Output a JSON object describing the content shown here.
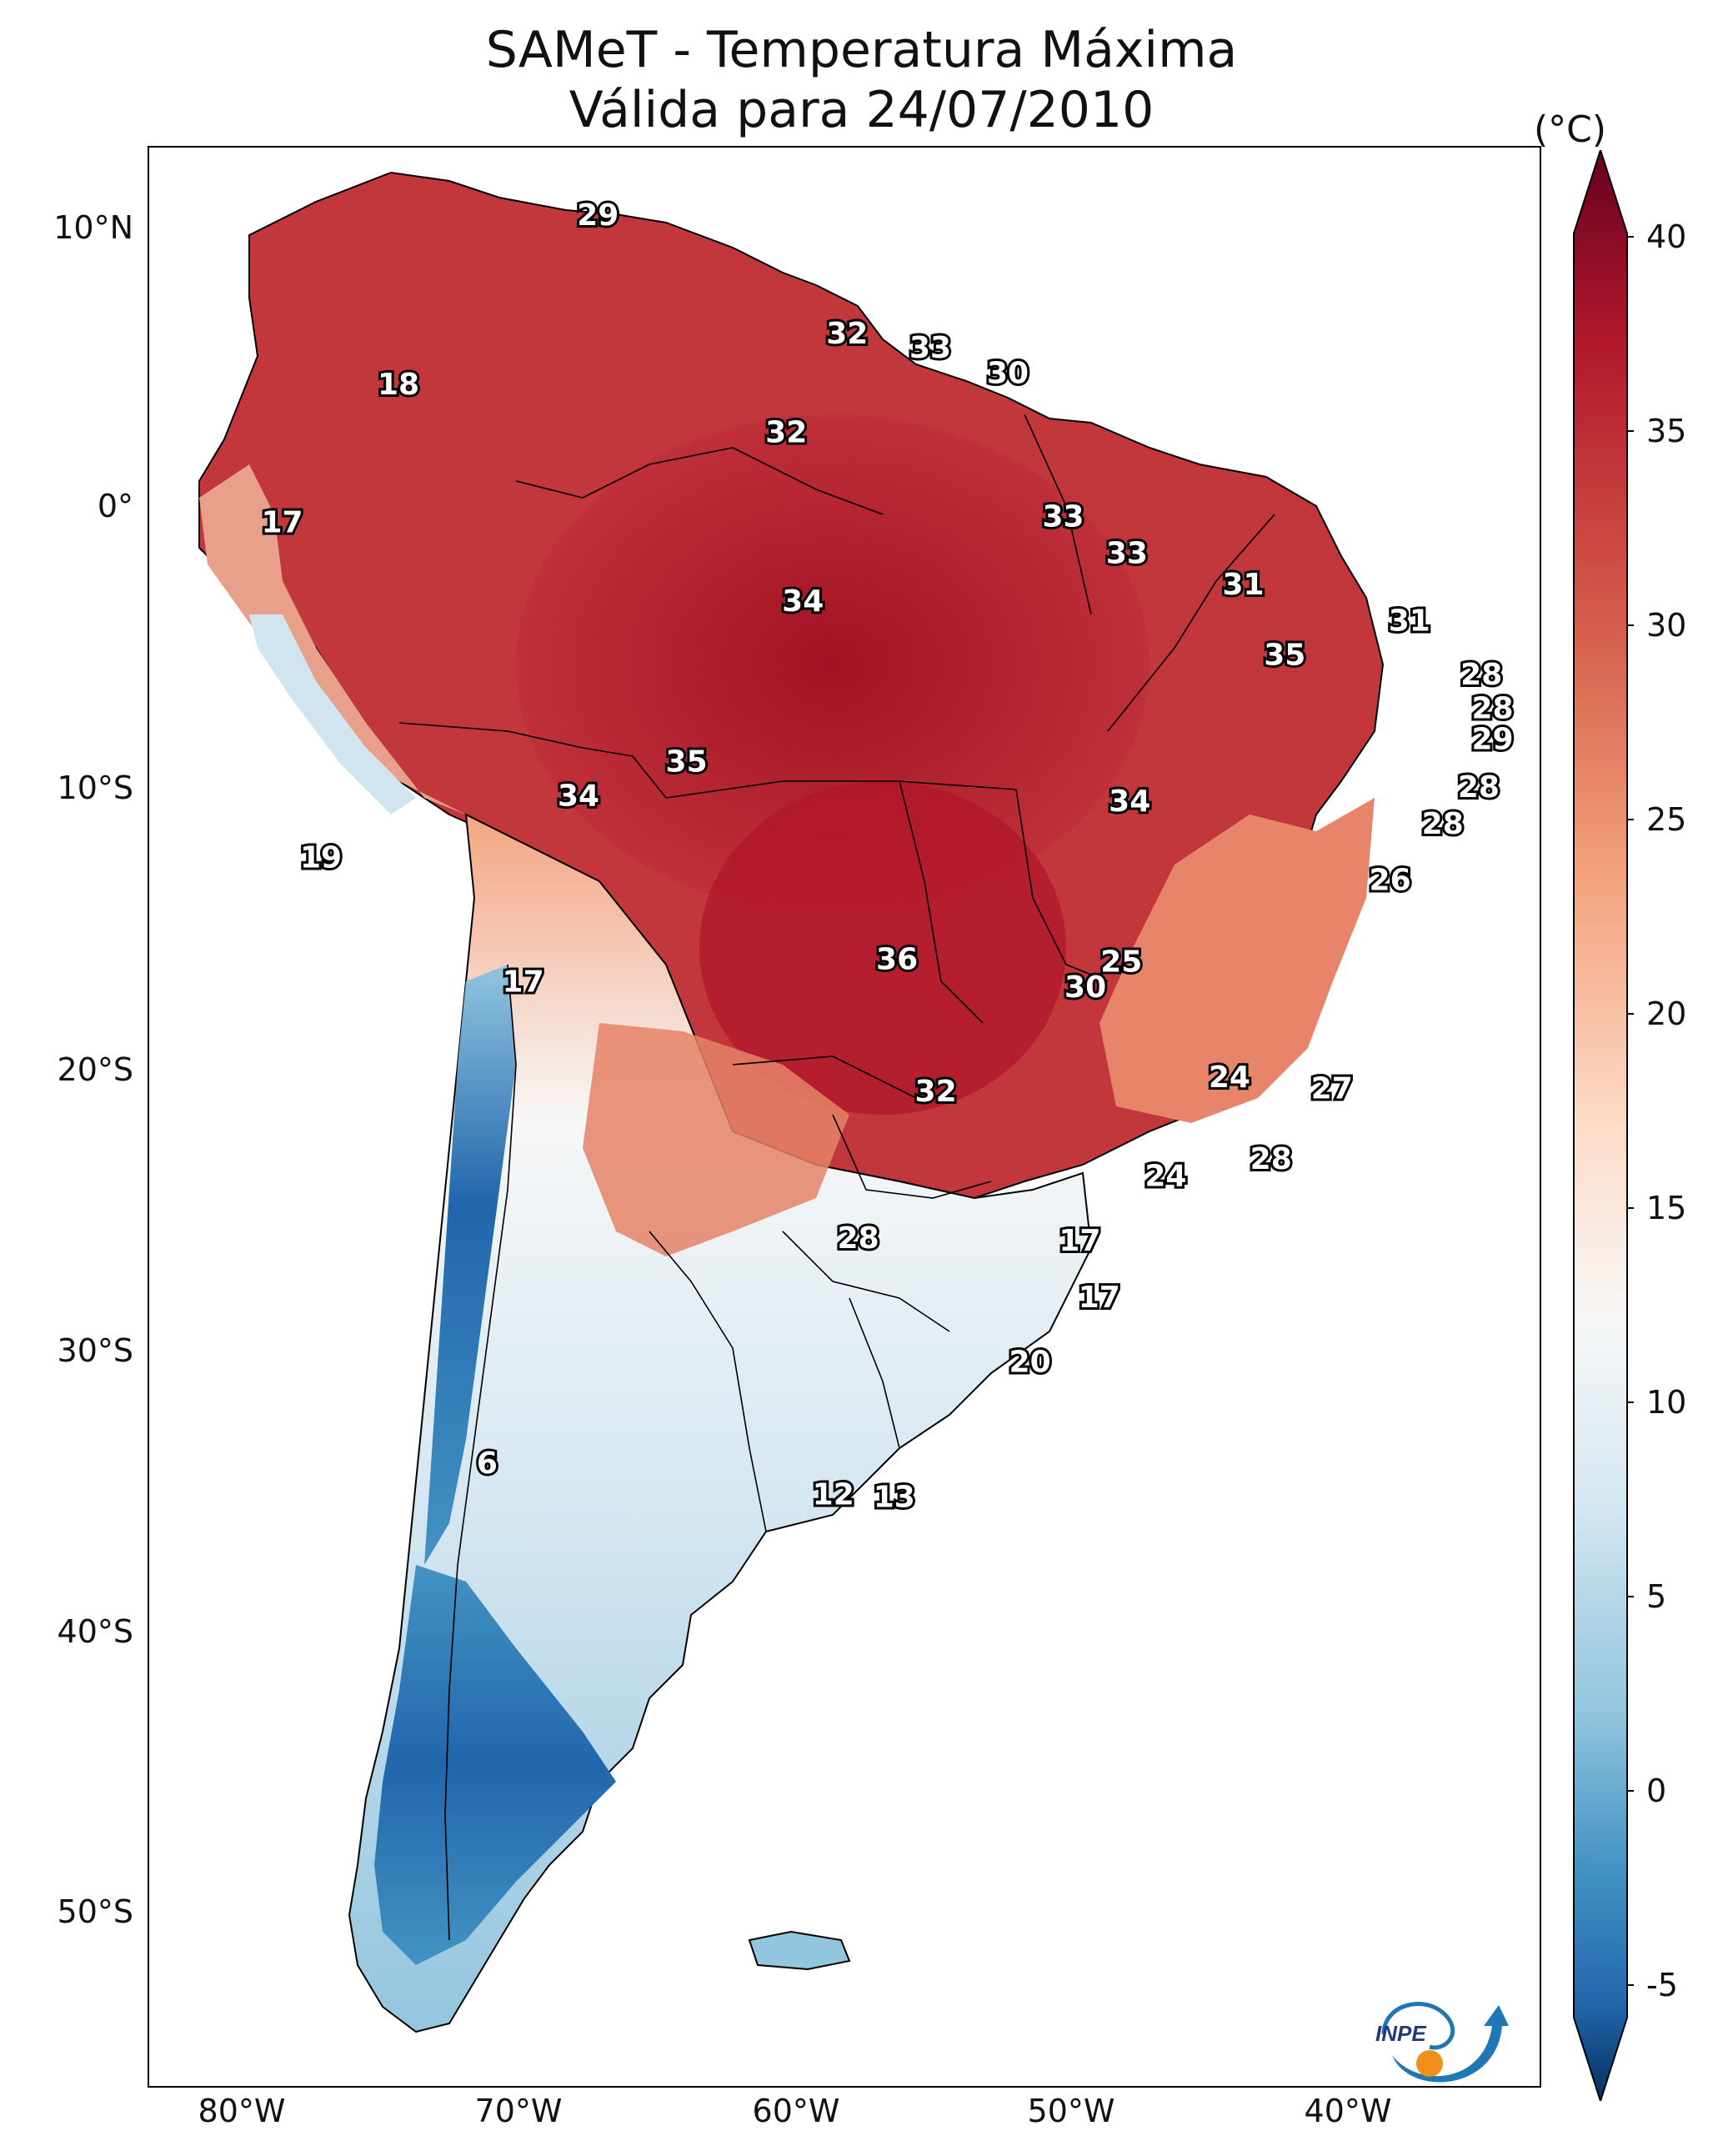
{
  "title": {
    "line1": "SAMeT - Temperatura Máxima",
    "line2": "Válida para 24/07/2010"
  },
  "axes": {
    "lat_labels": [
      "10°N",
      "0°",
      "10°S",
      "20°S",
      "30°S",
      "40°S",
      "50°S"
    ],
    "lon_labels": [
      "80°W",
      "70°W",
      "60°W",
      "50°W",
      "40°W"
    ]
  },
  "colorbar": {
    "unit": "(°C)",
    "range": [
      -5,
      40
    ],
    "ticks": [
      "40",
      "35",
      "30",
      "25",
      "20",
      "15",
      "10",
      "5",
      "0",
      "-5"
    ],
    "colors": [
      "#67001f",
      "#b2182b",
      "#d6604d",
      "#f4a582",
      "#fddbc7",
      "#f7f7f7",
      "#d1e5f0",
      "#92c5de",
      "#4393c3",
      "#2166ac",
      "#053061"
    ]
  },
  "map_labels": [
    {
      "text": "29",
      "lon": -66.8,
      "lat": 10.5
    },
    {
      "text": "32",
      "lon": -57.8,
      "lat": 6.3
    },
    {
      "text": "33",
      "lon": -54.8,
      "lat": 5.8
    },
    {
      "text": "30",
      "lon": -52.0,
      "lat": 4.9
    },
    {
      "text": "18",
      "lon": -74.0,
      "lat": 4.5
    },
    {
      "text": "32",
      "lon": -60.0,
      "lat": 2.8
    },
    {
      "text": "17",
      "lon": -78.2,
      "lat": -0.4
    },
    {
      "text": "33",
      "lon": -50.0,
      "lat": -0.2
    },
    {
      "text": "33",
      "lon": -47.7,
      "lat": -1.5
    },
    {
      "text": "34",
      "lon": -59.4,
      "lat": -3.2
    },
    {
      "text": "31",
      "lon": -43.5,
      "lat": -2.6
    },
    {
      "text": "31",
      "lon": -37.5,
      "lat": -3.9
    },
    {
      "text": "35",
      "lon": -42.0,
      "lat": -5.1
    },
    {
      "text": "28",
      "lon": -34.9,
      "lat": -5.8
    },
    {
      "text": "28",
      "lon": -34.5,
      "lat": -7.0
    },
    {
      "text": "29",
      "lon": -34.5,
      "lat": -8.1
    },
    {
      "text": "35",
      "lon": -63.6,
      "lat": -8.9
    },
    {
      "text": "34",
      "lon": -67.5,
      "lat": -10.1
    },
    {
      "text": "34",
      "lon": -47.6,
      "lat": -10.3
    },
    {
      "text": "28",
      "lon": -35.0,
      "lat": -9.8
    },
    {
      "text": "28",
      "lon": -36.3,
      "lat": -11.1
    },
    {
      "text": "19",
      "lon": -76.8,
      "lat": -12.3
    },
    {
      "text": "26",
      "lon": -38.2,
      "lat": -13.1
    },
    {
      "text": "36",
      "lon": -56.0,
      "lat": -15.9
    },
    {
      "text": "25",
      "lon": -47.9,
      "lat": -16.0
    },
    {
      "text": "30",
      "lon": -49.2,
      "lat": -16.9
    },
    {
      "text": "17",
      "lon": -69.5,
      "lat": -16.7
    },
    {
      "text": "24",
      "lon": -44.0,
      "lat": -20.1
    },
    {
      "text": "27",
      "lon": -40.3,
      "lat": -20.5
    },
    {
      "text": "32",
      "lon": -54.6,
      "lat": -20.6
    },
    {
      "text": "28",
      "lon": -42.5,
      "lat": -23.0
    },
    {
      "text": "24",
      "lon": -46.3,
      "lat": -23.6
    },
    {
      "text": "17",
      "lon": -49.4,
      "lat": -25.9
    },
    {
      "text": "28",
      "lon": -57.4,
      "lat": -25.8
    },
    {
      "text": "17",
      "lon": -48.7,
      "lat": -27.9
    },
    {
      "text": "20",
      "lon": -51.2,
      "lat": -30.2
    },
    {
      "text": "6",
      "lon": -70.8,
      "lat": -33.8
    },
    {
      "text": "12",
      "lon": -58.3,
      "lat": -34.9
    },
    {
      "text": "13",
      "lon": -56.1,
      "lat": -35.0
    }
  ],
  "logo": {
    "text": "INPE"
  }
}
